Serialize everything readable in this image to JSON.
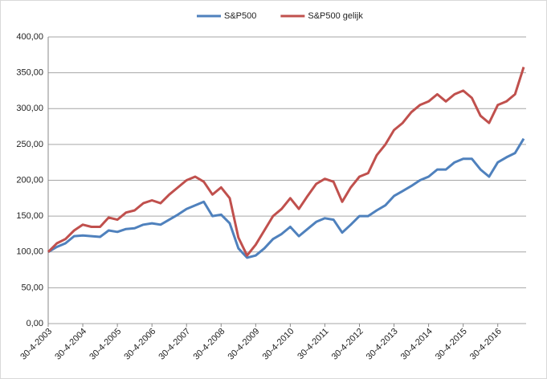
{
  "chart_data": {
    "type": "line",
    "categories": [
      "30-4-2003",
      null,
      null,
      null,
      "30-4-2004",
      null,
      null,
      null,
      "30-4-2005",
      null,
      null,
      null,
      "30-4-2006",
      null,
      null,
      null,
      "30-4-2007",
      null,
      null,
      null,
      "30-4-2008",
      null,
      null,
      null,
      "30-4-2009",
      null,
      null,
      null,
      "30-4-2010",
      null,
      null,
      null,
      "30-4-2011",
      null,
      null,
      null,
      "30-4-2012",
      null,
      null,
      null,
      "30-4-2013",
      null,
      null,
      null,
      "30-4-2014",
      null,
      null,
      null,
      "30-4-2015",
      null,
      null,
      null,
      "30-4-2016",
      null,
      null,
      null
    ],
    "series": [
      {
        "name": "S&P500",
        "color": "#4f81bd",
        "values": [
          100,
          107,
          112,
          122,
          123,
          122,
          121,
          130,
          128,
          132,
          133,
          138,
          140,
          138,
          145,
          152,
          160,
          165,
          170,
          150,
          152,
          140,
          105,
          92,
          95,
          105,
          118,
          125,
          135,
          122,
          132,
          142,
          147,
          145,
          127,
          138,
          150,
          150,
          158,
          165,
          178,
          185,
          192,
          200,
          205,
          215,
          215,
          225,
          230,
          230,
          215,
          205,
          225,
          232,
          238,
          258
        ]
      },
      {
        "name": "S&P500 gelijk",
        "color": "#c0504d",
        "values": [
          100,
          112,
          118,
          130,
          138,
          135,
          135,
          148,
          145,
          155,
          158,
          168,
          172,
          168,
          180,
          190,
          200,
          205,
          198,
          180,
          190,
          175,
          120,
          95,
          110,
          130,
          150,
          160,
          175,
          160,
          178,
          195,
          202,
          198,
          170,
          190,
          205,
          210,
          235,
          250,
          270,
          280,
          295,
          305,
          310,
          320,
          310,
          320,
          325,
          315,
          290,
          280,
          305,
          310,
          320,
          358
        ]
      }
    ],
    "ylim": [
      0,
      400
    ],
    "yticks": [
      {
        "value": 0,
        "label": "0,00"
      },
      {
        "value": 50,
        "label": "50,00"
      },
      {
        "value": 100,
        "label": "100,00"
      },
      {
        "value": 150,
        "label": "150,00"
      },
      {
        "value": 200,
        "label": "200,00"
      },
      {
        "value": 250,
        "label": "250,00"
      },
      {
        "value": 300,
        "label": "300,00"
      },
      {
        "value": 350,
        "label": "350,00"
      },
      {
        "value": 400,
        "label": "400,00"
      }
    ],
    "grid": true,
    "legend": "top"
  }
}
